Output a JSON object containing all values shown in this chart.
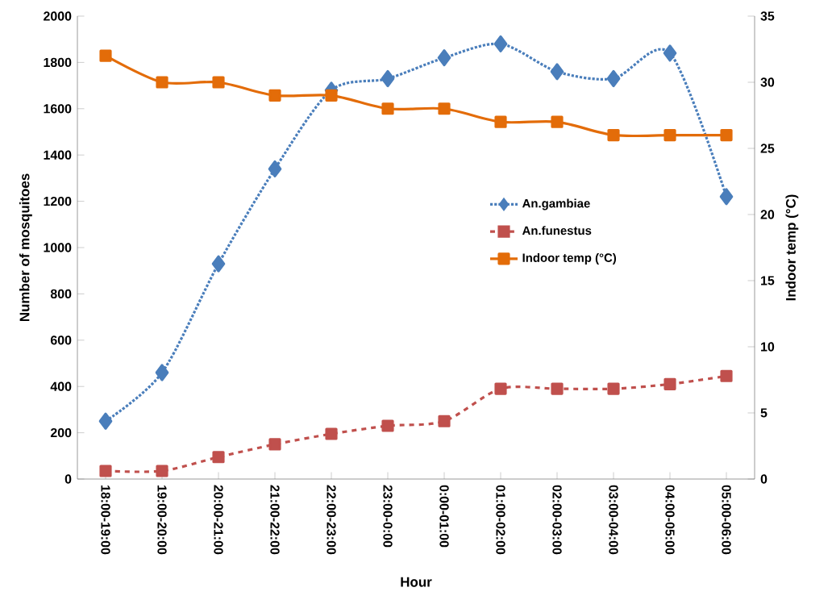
{
  "chart_data": {
    "type": "line",
    "xlabel": "Hour",
    "ylabel": "Number of mosquitoes",
    "y2label": "Indoor temp (°C)",
    "categories": [
      "18:00-19:00",
      "19:00-20:00",
      "20:00-21:00",
      "21:00-22:00",
      "22:00-23:00",
      "23:00-0:00",
      "0:00-01:00",
      "01:00-02:00",
      "02:00-03:00",
      "03:00-04:00",
      "04:00-05:00",
      "05:00-06:00"
    ],
    "series": [
      {
        "name": "An.gambiae",
        "color": "#4a7ebb",
        "marker": "diamond",
        "line_style": "dotted",
        "values": [
          250,
          460,
          930,
          1340,
          1680,
          1730,
          1820,
          1880,
          1760,
          1730,
          1840,
          1220
        ]
      },
      {
        "name": "An.funestus",
        "color": "#c0504d",
        "marker": "square",
        "line_style": "dashed",
        "values": [
          35,
          35,
          95,
          150,
          195,
          230,
          250,
          390,
          390,
          390,
          410,
          445
        ]
      },
      {
        "name": "Indoor temp (°C)",
        "color": "#e36c09",
        "marker": "square",
        "line_style": "solid",
        "axis": "y2",
        "values": [
          32,
          30,
          30,
          29,
          29,
          28,
          28,
          27,
          27,
          26,
          26,
          26
        ]
      }
    ],
    "ylim": [
      0,
      2000
    ],
    "yticks": [
      0,
      200,
      400,
      600,
      800,
      1000,
      1200,
      1400,
      1600,
      1800,
      2000
    ],
    "y2lim": [
      0,
      35
    ],
    "y2ticks": [
      0,
      5,
      10,
      15,
      20,
      25,
      30,
      35
    ],
    "grid": false,
    "legend": "right"
  }
}
